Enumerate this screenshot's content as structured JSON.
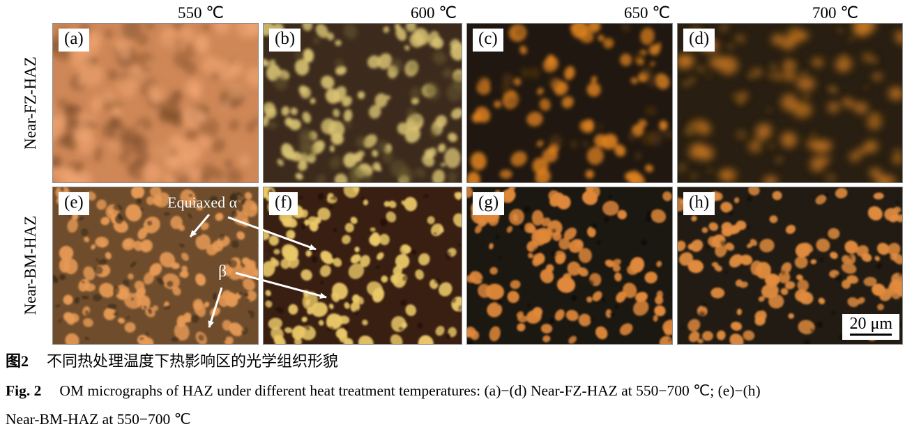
{
  "figure": {
    "temperatures": [
      "550 ℃",
      "600 ℃",
      "650 ℃",
      "700 ℃"
    ],
    "row_labels": [
      "Near-FZ-HAZ",
      "Near-BM-HAZ"
    ],
    "annotations": {
      "equiaxed_alpha": "Equiaxed α",
      "beta": "β"
    },
    "scale_bar": "20 μm"
  },
  "panels": [
    {
      "label": "(a)",
      "temperature": "550 ℃",
      "region": "Near-FZ-HAZ",
      "visual": {
        "bg": "#cf8757",
        "seed": 11,
        "layers": [
          {
            "c": "#7a4b28",
            "n": 85,
            "r": [
              5,
              16
            ],
            "ry": 0.8,
            "blur": 4.5,
            "o": 0.5
          },
          {
            "c": "#f3a875",
            "n": 60,
            "r": [
              6,
              18
            ],
            "ry": 0.7,
            "blur": 5,
            "o": 0.65
          }
        ]
      }
    },
    {
      "label": "(b)",
      "temperature": "600 ℃",
      "region": "Near-FZ-HAZ",
      "visual": {
        "bg": "#3c2a1c",
        "seed": 22,
        "layers": [
          {
            "c": "#d8c272",
            "n": 95,
            "r": [
              4,
              13
            ],
            "ry": 0.7,
            "blur": 2.2,
            "o": 0.95
          },
          {
            "c": "#6f6233",
            "n": 35,
            "r": [
              5,
              14
            ],
            "ry": 0.7,
            "blur": 3.5,
            "o": 0.5
          }
        ]
      }
    },
    {
      "label": "(c)",
      "temperature": "650 ℃",
      "region": "Near-FZ-HAZ",
      "visual": {
        "bg": "#1f1710",
        "seed": 33,
        "layers": [
          {
            "c": "#df821f",
            "n": 60,
            "r": [
              4,
              13
            ],
            "ry": 0.7,
            "blur": 3,
            "o": 0.9
          },
          {
            "c": "#69400f",
            "n": 25,
            "r": [
              4,
              10
            ],
            "ry": 0.7,
            "blur": 4,
            "o": 0.5
          }
        ]
      }
    },
    {
      "label": "(d)",
      "temperature": "700 ℃",
      "region": "Near-FZ-HAZ",
      "visual": {
        "bg": "#281e11",
        "seed": 44,
        "layers": [
          {
            "c": "#cd7a20",
            "n": 55,
            "r": [
              5,
              14
            ],
            "ry": 0.7,
            "blur": 5.5,
            "o": 0.8
          },
          {
            "c": "#8a5a1c",
            "n": 35,
            "r": [
              3,
              9
            ],
            "ry": 0.7,
            "blur": 4,
            "o": 0.45
          }
        ]
      }
    },
    {
      "label": "(e)",
      "temperature": "550 ℃",
      "region": "Near-BM-HAZ",
      "visual": {
        "bg": "#6f4d2c",
        "seed": 55,
        "layers": [
          {
            "c": "#e79a55",
            "n": 120,
            "r": [
              4,
              12
            ],
            "ry": 0.7,
            "blur": 1.3,
            "o": 1
          },
          {
            "c": "#2b1f12",
            "n": 70,
            "r": [
              2,
              7
            ],
            "ry": 0.45,
            "blur": 1,
            "o": 0.6
          }
        ]
      }
    },
    {
      "label": "(f)",
      "temperature": "600 ℃",
      "region": "Near-BM-HAZ",
      "visual": {
        "bg": "#381f12",
        "seed": 66,
        "layers": [
          {
            "c": "#eac868",
            "n": 115,
            "r": [
              4,
              12
            ],
            "ry": 0.7,
            "blur": 1.3,
            "o": 1
          },
          {
            "c": "#1c0d05",
            "n": 40,
            "r": [
              2,
              6
            ],
            "ry": 0.5,
            "blur": 1.2,
            "o": 0.5
          }
        ]
      }
    },
    {
      "label": "(g)",
      "temperature": "650 ℃",
      "region": "Near-BM-HAZ",
      "visual": {
        "bg": "#1b1711",
        "seed": 77,
        "layers": [
          {
            "c": "#e0883a",
            "n": 105,
            "r": [
              4,
              12
            ],
            "ry": 0.7,
            "blur": 1.3,
            "o": 1
          },
          {
            "c": "#090705",
            "n": 30,
            "r": [
              2,
              5
            ],
            "ry": 0.7,
            "blur": 1.5,
            "o": 0.5
          }
        ]
      }
    },
    {
      "label": "(h)",
      "temperature": "700 ℃",
      "region": "Near-BM-HAZ",
      "visual": {
        "bg": "#211b13",
        "seed": 88,
        "layers": [
          {
            "c": "#e08b3e",
            "n": 110,
            "r": [
              4,
              11
            ],
            "ry": 0.7,
            "blur": 1.3,
            "o": 1
          },
          {
            "c": "#0a0805",
            "n": 30,
            "r": [
              2,
              5
            ],
            "ry": 0.7,
            "blur": 1.5,
            "o": 0.5
          }
        ]
      }
    }
  ],
  "caption": {
    "zh_label": "图2",
    "zh_text": "不同热处理温度下热影响区的光学组织形貌",
    "en_label": "Fig. 2",
    "en_lines": [
      "OM micrographs of HAZ under different heat treatment temperatures: (a)−(d) Near-FZ-HAZ at 550−700 ℃; (e)−(h)",
      "Near-BM-HAZ at 550−700 ℃"
    ]
  }
}
